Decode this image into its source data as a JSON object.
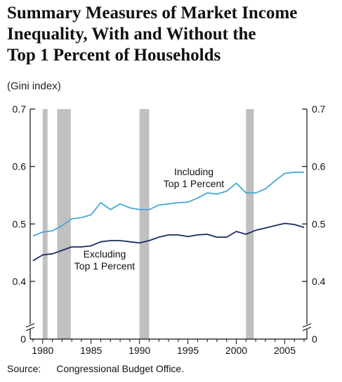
{
  "title_lines": [
    "Summary Measures of Market Income",
    "Inequality, With and Without the",
    "Top 1 Percent of Households"
  ],
  "subtitle": "(Gini index)",
  "source": {
    "label": "Source:",
    "text": "Congressional Budget Office."
  },
  "colors": {
    "including": "#4aa8d8",
    "excluding": "#1a2e5c",
    "recession": "#c0c0c0",
    "axis": "#111111"
  },
  "chart_data": {
    "type": "line",
    "title": "Summary Measures of Market Income Inequality, With and Without the Top 1 Percent of Households",
    "ylabel": "(Gini index)",
    "xlabel": "",
    "xlim": [
      1979,
      2007
    ],
    "ylim": [
      0,
      0.7
    ],
    "y_axis_break": true,
    "y_ticks": [
      "0",
      "0.4",
      "0.5",
      "0.6",
      "0.7"
    ],
    "x_ticks": [
      "1980",
      "1985",
      "1990",
      "1995",
      "2000",
      "2005"
    ],
    "recessions": [
      [
        1980.0,
        1980.5
      ],
      [
        1981.5,
        1982.9
      ],
      [
        1990.0,
        1991.0
      ],
      [
        2001.0,
        2001.8
      ]
    ],
    "series": [
      {
        "name": "Including Top 1 Percent",
        "label_lines": [
          "Including",
          "Top 1 Percent"
        ],
        "x": [
          1979,
          1980,
          1981,
          1982,
          1983,
          1984,
          1985,
          1986,
          1987,
          1988,
          1989,
          1990,
          1991,
          1992,
          1993,
          1994,
          1995,
          1996,
          1997,
          1998,
          1999,
          2000,
          2001,
          2002,
          2003,
          2004,
          2005,
          2006,
          2007
        ],
        "values": [
          0.479,
          0.486,
          0.488,
          0.497,
          0.509,
          0.511,
          0.516,
          0.537,
          0.525,
          0.535,
          0.528,
          0.525,
          0.525,
          0.533,
          0.535,
          0.537,
          0.538,
          0.545,
          0.554,
          0.552,
          0.557,
          0.571,
          0.554,
          0.554,
          0.561,
          0.575,
          0.588,
          0.59,
          0.59
        ]
      },
      {
        "name": "Excluding Top 1 Percent",
        "label_lines": [
          "Excluding",
          "Top 1 Percent"
        ],
        "x": [
          1979,
          1980,
          1981,
          1982,
          1983,
          1984,
          1985,
          1986,
          1987,
          1988,
          1989,
          1990,
          1991,
          1992,
          1993,
          1994,
          1995,
          1996,
          1997,
          1998,
          1999,
          2000,
          2001,
          2002,
          2003,
          2004,
          2005,
          2006,
          2007
        ],
        "values": [
          0.436,
          0.446,
          0.448,
          0.454,
          0.46,
          0.46,
          0.462,
          0.469,
          0.471,
          0.471,
          0.469,
          0.467,
          0.471,
          0.477,
          0.481,
          0.481,
          0.478,
          0.481,
          0.482,
          0.477,
          0.477,
          0.487,
          0.482,
          0.489,
          0.493,
          0.497,
          0.501,
          0.499,
          0.494
        ]
      }
    ]
  }
}
